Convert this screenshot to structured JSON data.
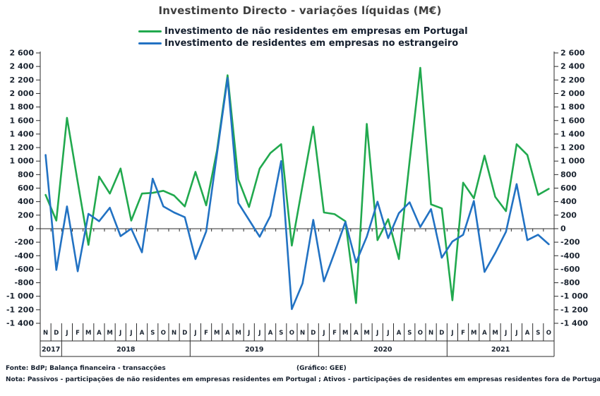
{
  "title": "Investimento Directo - variações líquidas (M€)",
  "legend": [
    {
      "label": "Investimento de não residentes em empresas em Portugal",
      "color": "#21a94e"
    },
    {
      "label": "Investimento de residentes em empresas no estrangeiro",
      "color": "#2272c3"
    }
  ],
  "footer": {
    "source": "Fonte: BdP; Balança financeira - transacções",
    "credit": "(Gráfico: GEE)",
    "note": "Nota: Passivos - participações de não residentes em empresas residentes em Portugal ; Ativos - participações de residentes em empresas residentes fora de Portugal."
  },
  "chart_data": {
    "type": "line",
    "title": "Investimento Directo - variações líquidas (M€)",
    "ylim": [
      -1400,
      2600
    ],
    "ytick_step": 200,
    "grid": false,
    "legend_position": "top",
    "x_months": [
      "N",
      "D",
      "J",
      "F",
      "M",
      "A",
      "M",
      "J",
      "J",
      "A",
      "S",
      "O",
      "N",
      "D",
      "J",
      "F",
      "M",
      "A",
      "M",
      "J",
      "J",
      "A",
      "S",
      "O",
      "N",
      "D",
      "J",
      "F",
      "M",
      "A",
      "M",
      "J",
      "J",
      "A",
      "S",
      "O",
      "N",
      "D",
      "J",
      "F",
      "M",
      "A",
      "M",
      "J",
      "J",
      "A",
      "S",
      "O"
    ],
    "x_years": [
      {
        "label": "2017",
        "months": 2
      },
      {
        "label": "2018",
        "months": 12
      },
      {
        "label": "2019",
        "months": 12
      },
      {
        "label": "2020",
        "months": 12
      },
      {
        "label": "2021",
        "months": 10
      }
    ],
    "series": [
      {
        "name": "Investimento de não residentes em empresas em Portugal",
        "color": "#21a94e",
        "values": [
          500,
          120,
          1640,
          690,
          -240,
          770,
          520,
          890,
          120,
          520,
          530,
          560,
          490,
          330,
          840,
          345,
          1150,
          2270,
          730,
          320,
          890,
          1120,
          1250,
          -250,
          640,
          1510,
          240,
          215,
          110,
          -1100,
          1550,
          -170,
          140,
          -450,
          1000,
          2380,
          360,
          300,
          -1060,
          680,
          450,
          1080,
          470,
          260,
          1250,
          1090,
          500,
          590
        ]
      },
      {
        "name": "Investimento de residentes em empresas no estrangeiro",
        "color": "#2272c3",
        "values": [
          1090,
          -610,
          330,
          -630,
          220,
          110,
          310,
          -110,
          0,
          -350,
          740,
          330,
          240,
          170,
          -450,
          -40,
          1100,
          2230,
          380,
          130,
          -120,
          190,
          1000,
          -1190,
          -810,
          130,
          -780,
          -350,
          100,
          -500,
          -120,
          400,
          -140,
          230,
          390,
          25,
          290,
          -430,
          -190,
          -90,
          410,
          -640,
          -360,
          -45,
          660,
          -170,
          -90,
          -230
        ]
      }
    ]
  }
}
